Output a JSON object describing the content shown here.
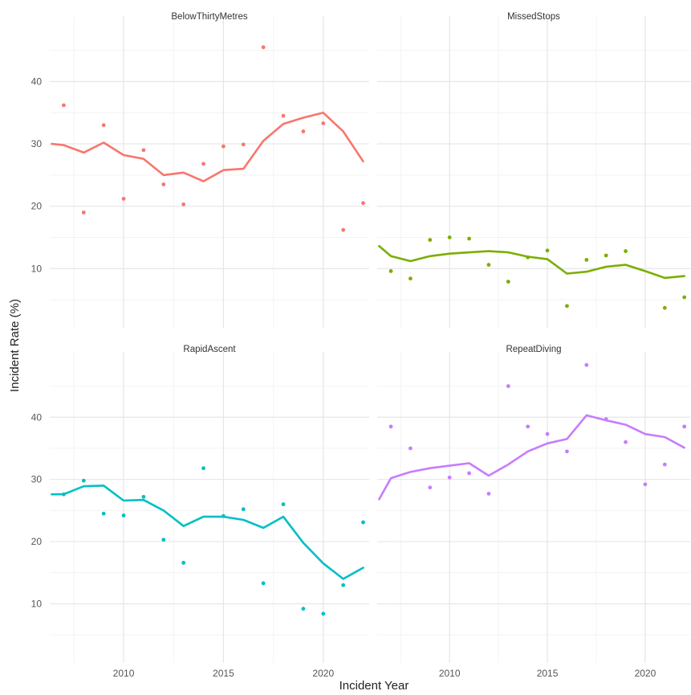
{
  "chart_data": {
    "type": "line",
    "xlabel": "Incident Year",
    "ylabel": "Incident Rate (%)",
    "grid": true,
    "facet_layout": "2x2",
    "xlim": [
      2006.3,
      2022.3
    ],
    "xticks": [
      2010,
      2015,
      2020
    ],
    "ylim": [
      0.5,
      50.5
    ],
    "yticks": [
      10,
      20,
      30,
      40
    ],
    "panels": [
      {
        "title": "BelowThirtyMetres",
        "color": "#F8766D",
        "points": {
          "x": [
            2007,
            2008,
            2009,
            2010,
            2011,
            2012,
            2013,
            2014,
            2015,
            2016,
            2017,
            2018,
            2019,
            2020,
            2021,
            2022
          ],
          "y": [
            36.2,
            19.0,
            33.0,
            21.2,
            29.0,
            23.5,
            20.3,
            26.8,
            29.6,
            29.9,
            45.5,
            34.5,
            32.0,
            33.3,
            16.2,
            20.5
          ]
        },
        "trend": {
          "x": [
            2006.4,
            2007,
            2008,
            2009,
            2010,
            2011,
            2012,
            2013,
            2014,
            2015,
            2016,
            2017,
            2018,
            2019,
            2020,
            2021,
            2022
          ],
          "y": [
            30.0,
            29.8,
            28.6,
            30.2,
            28.2,
            27.6,
            25.0,
            25.4,
            24.0,
            25.8,
            26.0,
            30.5,
            33.2,
            34.2,
            35.0,
            32.0,
            27.2
          ]
        }
      },
      {
        "title": "MissedStops",
        "color": "#7CAE00",
        "points": {
          "x": [
            2007,
            2008,
            2009,
            2010,
            2011,
            2012,
            2013,
            2014,
            2015,
            2016,
            2017,
            2018,
            2019,
            2021,
            2022
          ],
          "y": [
            9.6,
            8.4,
            14.6,
            15.0,
            14.8,
            10.6,
            7.9,
            11.8,
            12.9,
            4.0,
            11.4,
            12.1,
            12.8,
            3.7,
            5.4
          ]
        },
        "trend": {
          "x": [
            2006.4,
            2007,
            2008,
            2009,
            2010,
            2011,
            2012,
            2013,
            2014,
            2015,
            2016,
            2017,
            2018,
            2019,
            2020,
            2021,
            2022
          ],
          "y": [
            13.6,
            12.0,
            11.2,
            12.0,
            12.4,
            12.6,
            12.8,
            12.6,
            11.9,
            11.5,
            9.2,
            9.5,
            10.3,
            10.6,
            9.6,
            8.5,
            8.8
          ]
        }
      },
      {
        "title": "RapidAscent",
        "color": "#00BFC4",
        "points": {
          "x": [
            2007,
            2008,
            2009,
            2010,
            2011,
            2012,
            2013,
            2014,
            2015,
            2016,
            2017,
            2018,
            2019,
            2020,
            2021,
            2022
          ],
          "y": [
            27.6,
            29.8,
            24.5,
            24.2,
            27.2,
            20.3,
            16.6,
            31.8,
            24.1,
            25.2,
            13.3,
            26.0,
            9.2,
            8.4,
            13.0,
            23.1
          ]
        },
        "trend": {
          "x": [
            2006.4,
            2007,
            2008,
            2009,
            2010,
            2011,
            2012,
            2013,
            2014,
            2015,
            2016,
            2017,
            2018,
            2019,
            2020,
            2021,
            2022
          ],
          "y": [
            27.6,
            27.6,
            28.9,
            29.0,
            26.6,
            26.7,
            25.0,
            22.5,
            24.0,
            24.0,
            23.5,
            22.2,
            24.0,
            19.8,
            16.5,
            14.0,
            15.8
          ]
        }
      },
      {
        "title": "RepeatDiving",
        "color": "#C77CFF",
        "points": {
          "x": [
            2007,
            2008,
            2009,
            2010,
            2011,
            2012,
            2013,
            2014,
            2015,
            2016,
            2017,
            2018,
            2019,
            2020,
            2021,
            2022
          ],
          "y": [
            38.5,
            35.0,
            28.7,
            30.3,
            31.0,
            27.7,
            45.0,
            38.5,
            37.3,
            34.5,
            48.4,
            39.7,
            36.0,
            29.2,
            32.4,
            38.5
          ]
        },
        "trend": {
          "x": [
            2006.4,
            2007,
            2008,
            2009,
            2010,
            2011,
            2012,
            2013,
            2014,
            2015,
            2016,
            2017,
            2018,
            2019,
            2020,
            2021,
            2022
          ],
          "y": [
            26.8,
            30.2,
            31.2,
            31.8,
            32.2,
            32.6,
            30.6,
            32.4,
            34.5,
            35.8,
            36.5,
            40.3,
            39.5,
            38.8,
            37.3,
            36.8,
            35.1
          ]
        }
      }
    ]
  }
}
